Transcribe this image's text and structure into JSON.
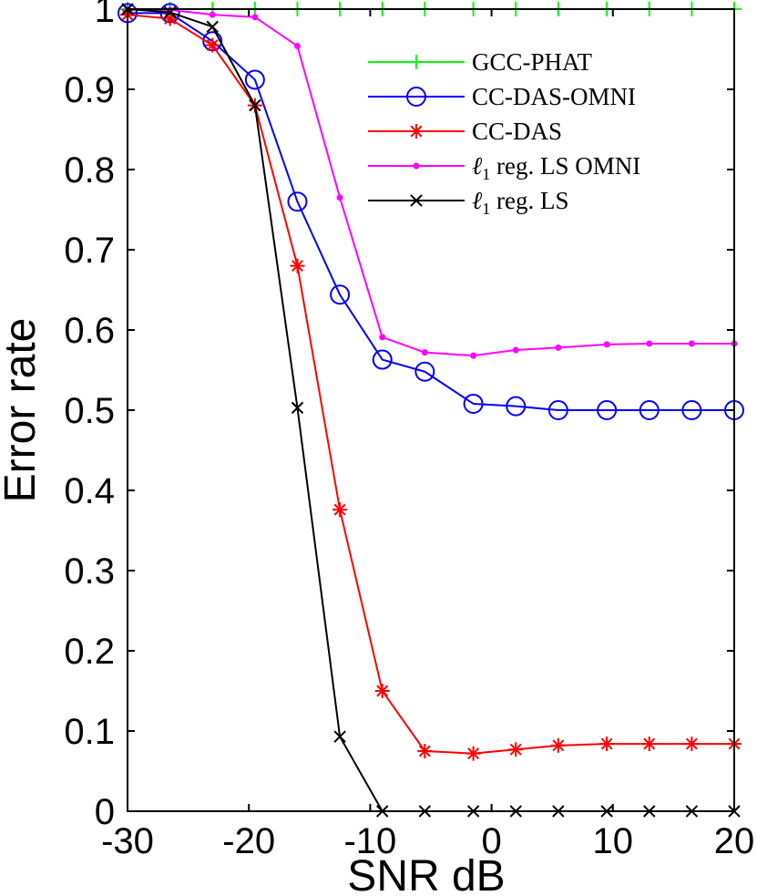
{
  "chart_data": {
    "type": "line",
    "xlabel": "SNR  dB",
    "ylabel": "Error rate",
    "xlim": [
      -30,
      20
    ],
    "ylim": [
      0,
      1
    ],
    "xticks": [
      -30,
      -20,
      -10,
      0,
      10,
      20
    ],
    "xtick_labels": [
      "-30",
      "-20",
      "-10",
      "0",
      "10",
      "20"
    ],
    "yticks": [
      0,
      0.1,
      0.2,
      0.3,
      0.4,
      0.5,
      0.6,
      0.7,
      0.8,
      0.9,
      1
    ],
    "ytick_labels": [
      "0",
      "0.1",
      "0.2",
      "0.3",
      "0.4",
      "0.5",
      "0.6",
      "0.7",
      "0.8",
      "0.9",
      "1"
    ],
    "grid": false,
    "legend_position": "top-right",
    "x": [
      -30,
      -26.5,
      -23,
      -19.5,
      -16,
      -12.5,
      -9,
      -5.5,
      -1.5,
      2,
      5.5,
      9.5,
      13,
      16.5,
      20
    ],
    "series": [
      {
        "name": "GCC-PHAT",
        "color": "#00ff00",
        "marker": "plus",
        "values": [
          1,
          1,
          1,
          1,
          1,
          1,
          1,
          1,
          1,
          1,
          1,
          1,
          1,
          1,
          1
        ]
      },
      {
        "name": "CC-DAS-OMNI",
        "color": "#0000ff",
        "marker": "circle",
        "values": [
          0.995,
          0.995,
          0.96,
          0.912,
          0.76,
          0.644,
          0.563,
          0.548,
          0.508,
          0.505,
          0.5,
          0.5,
          0.5,
          0.5,
          0.5
        ]
      },
      {
        "name": "CC-DAS",
        "color": "#ff0000",
        "marker": "asterisk",
        "values": [
          0.993,
          0.988,
          0.955,
          0.88,
          0.68,
          0.376,
          0.15,
          0.075,
          0.072,
          0.077,
          0.082,
          0.084,
          0.084,
          0.084,
          0.084
        ]
      },
      {
        "name": "ℓ1 reg. LS OMNI",
        "name_parts": [
          "ℓ",
          "1",
          " reg. LS OMNI"
        ],
        "color": "#ff00ff",
        "marker": "dot",
        "values": [
          1,
          0.999,
          0.993,
          0.99,
          0.954,
          0.765,
          0.591,
          0.572,
          0.568,
          0.575,
          0.578,
          0.582,
          0.583,
          0.583,
          0.583
        ]
      },
      {
        "name": "ℓ1 reg. LS",
        "name_parts": [
          "ℓ",
          "1",
          " reg. LS"
        ],
        "color": "#000000",
        "marker": "x",
        "values": [
          1,
          0.996,
          0.978,
          0.88,
          0.503,
          0.093,
          0,
          0,
          0,
          0,
          0,
          0,
          0,
          0,
          0
        ]
      }
    ]
  }
}
